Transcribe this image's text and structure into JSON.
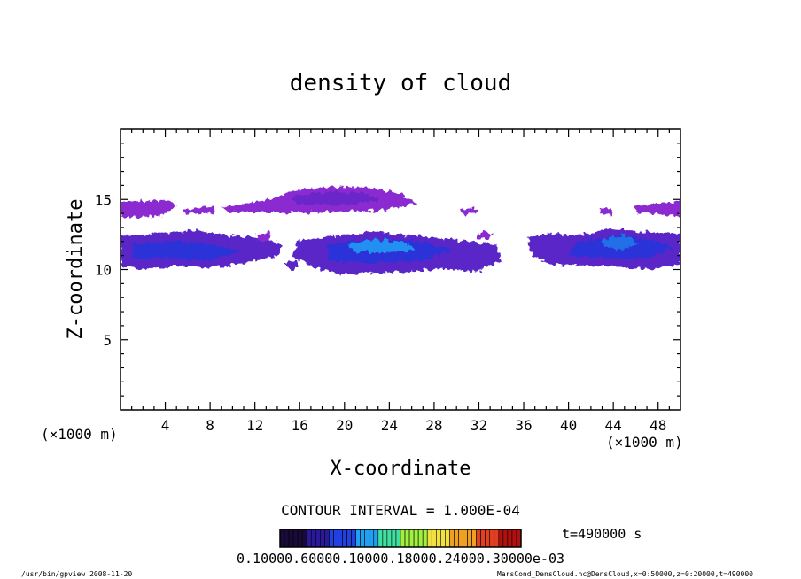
{
  "chart_data": {
    "type": "heatmap",
    "title": "density of cloud",
    "xlabel": "X-coordinate",
    "ylabel": "Z-coordinate",
    "x_unit": "(×1000 m)",
    "y_unit": "(×1000 m)",
    "xlim": [
      0,
      50
    ],
    "ylim": [
      0,
      20
    ],
    "xticks": [
      4,
      8,
      12,
      16,
      20,
      24,
      28,
      32,
      36,
      40,
      44,
      48
    ],
    "yticks": [
      5,
      10,
      15
    ],
    "contour_interval": "CONTOUR INTERVAL = 1.000E-04",
    "time_label": "t=490000 s",
    "colorbar_labels": "0.10000.60000.10000.18000.24000.30000e-03",
    "colormap": [
      "#1a0a3a",
      "#2a1a9a",
      "#2040e0",
      "#20a0f0",
      "#40e0a0",
      "#a0f040",
      "#f0e040",
      "#f0a020",
      "#e04020",
      "#b01010"
    ],
    "cloud_layers": [
      {
        "z_range": [
          13.8,
          15.6
        ],
        "x_range": [
          0,
          50
        ],
        "peak_density": "low",
        "color": "#8020c0"
      },
      {
        "z_range": [
          9.9,
          12.8
        ],
        "x_range": [
          0,
          50
        ],
        "peak_density": "medium",
        "color": "#3040d0"
      }
    ],
    "footer_left": "/usr/bin/gpview   2008-11-20",
    "footer_right": "MarsCond_DensCloud.nc@DensCloud,x=0:50000,z=0:20000,t=490000"
  }
}
